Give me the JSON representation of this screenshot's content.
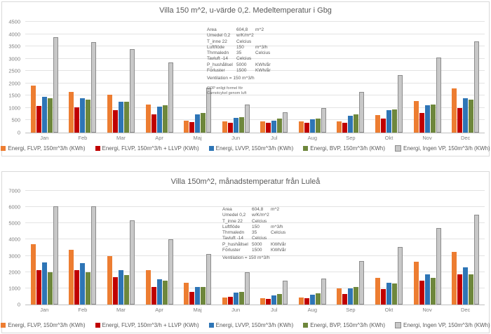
{
  "chart_data": [
    {
      "type": "bar",
      "title": "Villa 150 m^2, u-värde 0,2. Medeltemperatur i Gbg",
      "categories": [
        "Jan",
        "Feb",
        "Mar",
        "Apr",
        "Maj",
        "Jun",
        "Jul",
        "Aug",
        "Sep",
        "Okt",
        "Nov",
        "Dec"
      ],
      "series": [
        {
          "name": "Energi, FLVP, 150m^3/h (KWh)",
          "color": "#ED7D31",
          "values": [
            1900,
            1660,
            1530,
            1130,
            480,
            470,
            460,
            470,
            470,
            720,
            1280,
            1800
          ]
        },
        {
          "name": "Energi, FLVP, 150m^3/h + LLVP (KWh)",
          "color": "#C00000",
          "values": [
            1080,
            1020,
            910,
            730,
            440,
            390,
            390,
            390,
            390,
            560,
            790,
            1010
          ]
        },
        {
          "name": "Energi, LVVP, 150m^3/h (KWh)",
          "color": "#2E75B6",
          "values": [
            1450,
            1390,
            1250,
            1060,
            750,
            590,
            480,
            550,
            680,
            900,
            1120,
            1400
          ]
        },
        {
          "name": "Energi, BVP, 150m^3/h (KWh)",
          "color": "#6E873C",
          "values": [
            1390,
            1340,
            1240,
            1100,
            810,
            640,
            560,
            560,
            750,
            950,
            1150,
            1350
          ]
        },
        {
          "name": "Energi, Ingen VP, 150m^3/h (KWh)",
          "color": "#C8C8C8",
          "border": "#8C8C8C",
          "values": [
            3870,
            3680,
            3380,
            2850,
            1820,
            1150,
            830,
            990,
            1650,
            2350,
            3040,
            3700
          ]
        }
      ],
      "ylim": [
        0,
        4500
      ],
      "ytick_step": 500,
      "grid": true,
      "legend_position": "bottom",
      "annotation": {
        "rows": [
          [
            "Area",
            "604,8",
            "m^2"
          ],
          [
            "Umedel 0,2",
            "w/K/m^2",
            ""
          ],
          [
            "T_inne  22",
            "Celcius",
            ""
          ],
          [
            "Luftflöde",
            "150",
            "m^3/h"
          ],
          [
            "Thrmaledn",
            "35",
            "Celcius"
          ],
          [
            "Tavluft  -14",
            "Celcius",
            ""
          ],
          [
            "P_hushållsel",
            "5000",
            "KWh/år"
          ],
          [
            "Förluster",
            "1500",
            "KWh/år"
          ]
        ],
        "ventilation": "Ventilation = 150 m^3/h",
        "footnote": [
          "COP enligt formel för",
          "Carnotcykel genom luft"
        ]
      }
    },
    {
      "type": "bar",
      "title": "Villa 150m^2, månadstemperatur från Luleå",
      "categories": [
        "Jan",
        "Feb",
        "Mar",
        "Apr",
        "Maj",
        "Jun",
        "Jul",
        "Aug",
        "Sep",
        "Okt",
        "Nov",
        "Dec"
      ],
      "series": [
        {
          "name": "Energi, FLVP, 150m^3/h (KWh)",
          "color": "#ED7D31",
          "values": [
            3700,
            3350,
            3000,
            2100,
            1350,
            430,
            400,
            430,
            1000,
            1650,
            2650,
            3250
          ]
        },
        {
          "name": "Energi, FLVP, 150m^3/h + LLVP (KWh)",
          "color": "#C00000",
          "values": [
            2100,
            2100,
            1700,
            1100,
            800,
            460,
            340,
            370,
            670,
            950,
            1450,
            1850
          ]
        },
        {
          "name": "Energi, LVVP, 150m^3/h (KWh)",
          "color": "#2E75B6",
          "values": [
            2600,
            2550,
            2100,
            1550,
            1100,
            720,
            560,
            620,
            1000,
            1350,
            1850,
            2300
          ]
        },
        {
          "name": "Energi, BVP, 150m^3/h (KWh)",
          "color": "#6E873C",
          "values": [
            2000,
            2000,
            1800,
            1450,
            1100,
            780,
            650,
            680,
            1070,
            1280,
            1650,
            1870
          ]
        },
        {
          "name": "Energi, Ingen VP, 150m^3/h (KWh)",
          "color": "#C8C8C8",
          "border": "#8C8C8C",
          "values": [
            6050,
            6050,
            5200,
            4000,
            3100,
            2000,
            1450,
            1600,
            2700,
            3550,
            4700,
            5550
          ]
        }
      ],
      "ylim": [
        0,
        7000
      ],
      "ytick_step": 1000,
      "grid": true,
      "legend_position": "bottom",
      "annotation": {
        "rows": [
          [
            "Area",
            "604,8",
            "m^2"
          ],
          [
            "Umedel 0,2",
            "w/K/m^2",
            ""
          ],
          [
            "T_inne  22",
            "Celcius",
            ""
          ],
          [
            "Luftflöde",
            "150",
            "m^3/h"
          ],
          [
            "Thrmaledn",
            "35",
            "Celcius"
          ],
          [
            "Tavluft  -14",
            "Celcius",
            ""
          ],
          [
            "P_hushållsel",
            "5000",
            "KWh/år"
          ],
          [
            "Förluster",
            "1500",
            "KWh/år"
          ]
        ],
        "ventilation": "Ventilation = 150 m^3/h",
        "footnote": []
      }
    }
  ]
}
